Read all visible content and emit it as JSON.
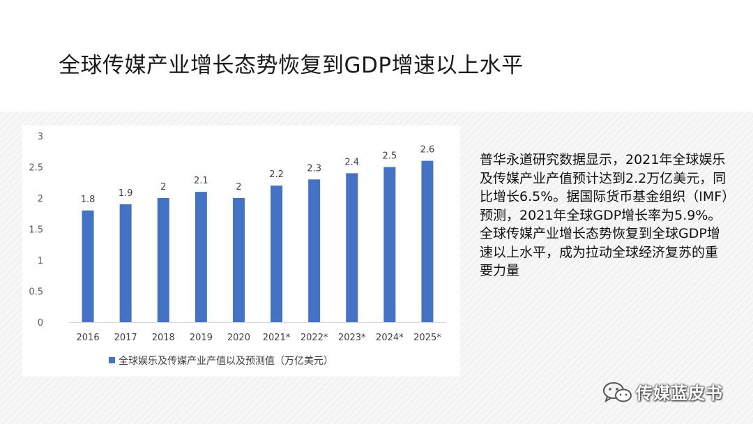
{
  "slide": {
    "title": "全球传媒产业增长态势恢复到GDP增速以上水平",
    "description": "普华永道研究数据显示，2021年全球娱乐及传媒产业产值预计达到2.2万亿美元，同比增长6.5%。据国际货币基金组织（IMF）预测，2021年全球GDP增长率为5.9%。全球传媒产业增长态势恢复到全球GDP增速以上水平，成为拉动全球经济复苏的重要力量"
  },
  "watermark": {
    "text": "传媒蓝皮书",
    "icon": "wechat-icon"
  },
  "chart_data": {
    "type": "bar",
    "categories": [
      "2016",
      "2017",
      "2018",
      "2019",
      "2020",
      "2021*",
      "2022*",
      "2023*",
      "2024*",
      "2025*"
    ],
    "series": [
      {
        "name": "全球娱乐及传媒产业产值以及预测值（万亿美元）",
        "values": [
          1.8,
          1.9,
          2,
          2.1,
          2,
          2.2,
          2.3,
          2.4,
          2.5,
          2.6
        ],
        "color": "#4472c4"
      }
    ],
    "data_labels": [
      "1.8",
      "1.9",
      "2",
      "2.1",
      "2",
      "2.2",
      "2.3",
      "2.4",
      "2.5",
      "2.6"
    ],
    "yticks": [
      "0",
      "0.5",
      "1",
      "1.5",
      "2",
      "2.5",
      "3"
    ],
    "ylim": [
      0,
      3
    ],
    "grid": false,
    "legend": "bottom"
  }
}
